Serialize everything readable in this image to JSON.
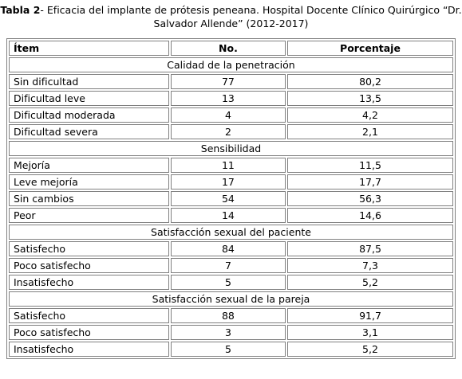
{
  "title": {
    "label": "Tabla 2",
    "text": "- Eficacia del implante de prótesis peneana. Hospital Docente Clínico Quirúrgico “Dr. Salvador Allende” (2012-2017)"
  },
  "table": {
    "headers": [
      "Ítem",
      "No.",
      "Porcentaje"
    ],
    "sections": [
      {
        "title": "Calidad de la penetración",
        "rows": [
          [
            "Sin dificultad",
            "77",
            "80,2"
          ],
          [
            "Dificultad leve",
            "13",
            "13,5"
          ],
          [
            "Dificultad moderada",
            "4",
            "4,2"
          ],
          [
            "Dificultad severa",
            "2",
            "2,1"
          ]
        ]
      },
      {
        "title": "Sensibilidad",
        "rows": [
          [
            "Mejoría",
            "11",
            "11,5"
          ],
          [
            "Leve mejoría",
            "17",
            "17,7"
          ],
          [
            "Sin cambios",
            "54",
            "56,3"
          ],
          [
            "Peor",
            "14",
            "14,6"
          ]
        ]
      },
      {
        "title": "Satisfacción sexual del paciente",
        "rows": [
          [
            "Satisfecho",
            "84",
            "87,5"
          ],
          [
            "Poco satisfecho",
            "7",
            "7,3"
          ],
          [
            "Insatisfecho",
            "5",
            "5,2"
          ]
        ]
      },
      {
        "title": "Satisfacción sexual de la pareja",
        "rows": [
          [
            "Satisfecho",
            "88",
            "91,7"
          ],
          [
            "Poco satisfecho",
            "3",
            "3,1"
          ],
          [
            "Insatisfecho",
            "5",
            "5,2"
          ]
        ]
      }
    ]
  }
}
